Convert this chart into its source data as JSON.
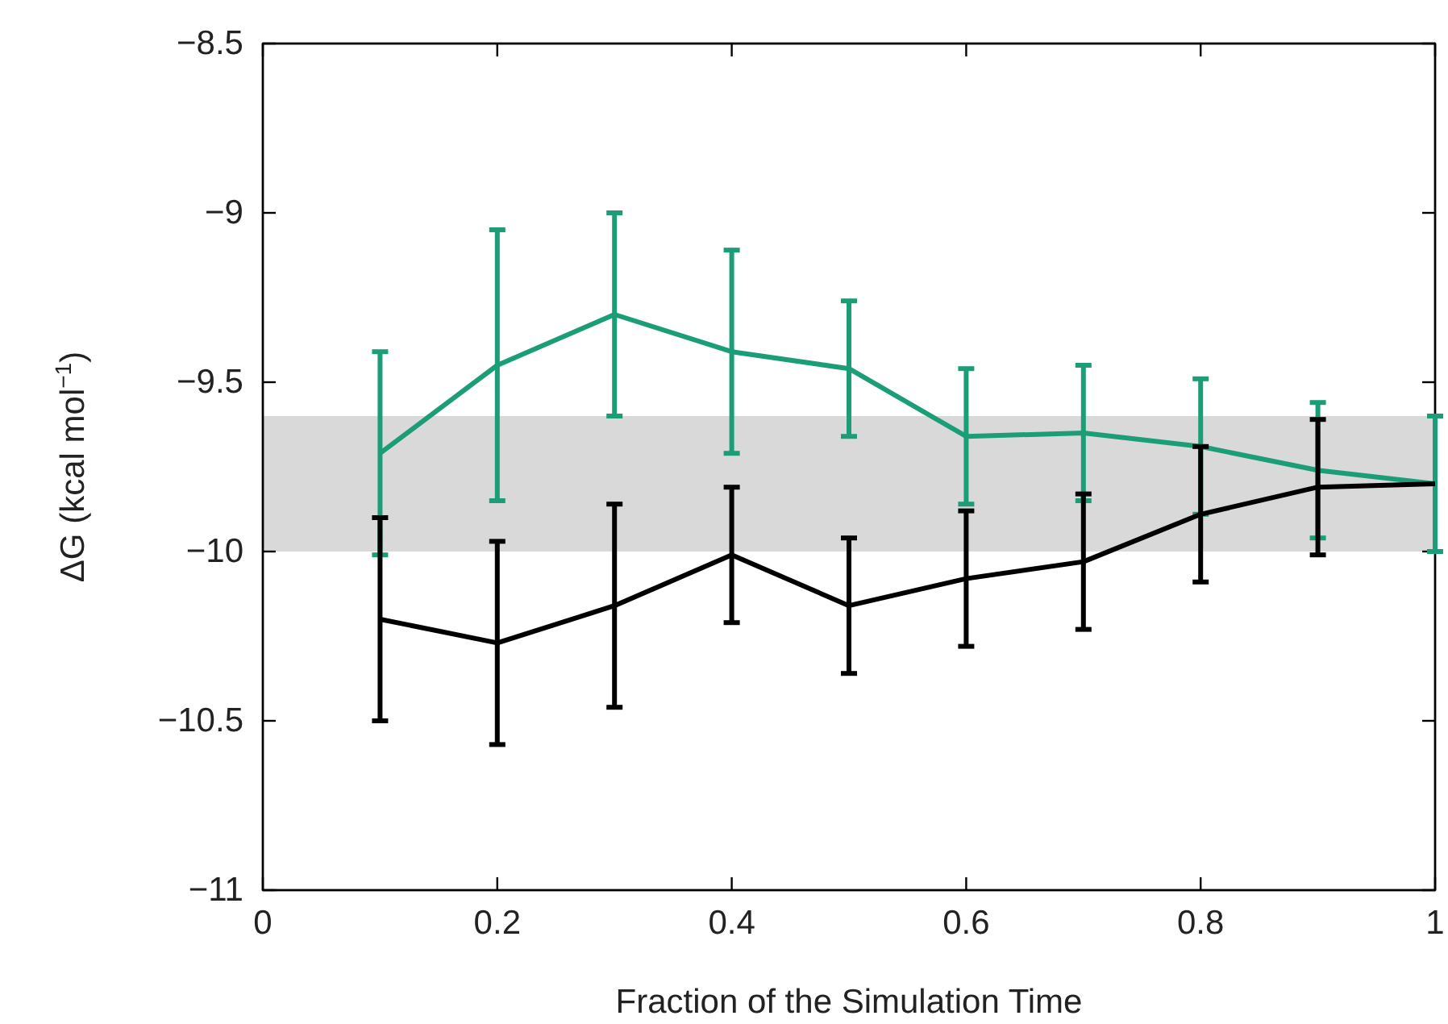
{
  "chart_data": {
    "type": "line",
    "xlabel": "Fraction of the Simulation Time",
    "ylabel": "ΔG (kcal mol$^{−1}$)",
    "x": [
      0.1,
      0.2,
      0.3,
      0.4,
      0.5,
      0.6,
      0.7,
      0.8,
      0.9,
      1
    ],
    "series": [
      {
        "color": "#1b9e77",
        "values": [
          -9.71,
          -9.45,
          -9.3,
          -9.41,
          -9.46,
          -9.66,
          -9.65,
          -9.69,
          -9.76,
          -9.8
        ],
        "errors": [
          0.3,
          0.4,
          0.3,
          0.3,
          0.2,
          0.2,
          0.2,
          0.2,
          0.2,
          0.2
        ]
      },
      {
        "color": "#000000",
        "values": [
          -10.2,
          -10.27,
          -10.16,
          -10.01,
          -10.16,
          -10.08,
          -10.03,
          -9.89,
          -9.81,
          -9.8
        ],
        "errors": [
          0.3,
          0.3,
          0.3,
          0.2,
          0.2,
          0.2,
          0.2,
          0.2,
          0.2,
          null
        ]
      }
    ],
    "bands": [
      {
        "axis": "y",
        "from": -10.0,
        "to": -9.6,
        "color": "#d9d9d9"
      }
    ],
    "xlim": [
      0,
      1
    ],
    "xticks": [
      0,
      0.2,
      0.4,
      0.6,
      0.8,
      1
    ],
    "ylim": [
      -11,
      -8.5
    ],
    "yticks": [
      {
        "value": -11,
        "label": "−11"
      },
      {
        "value": -10.5,
        "label": "−10.5"
      },
      {
        "value": -10,
        "label": "−10"
      },
      {
        "value": -9.5,
        "label": "−9.5"
      },
      {
        "value": -9,
        "label": "−9"
      },
      {
        "value": -8.5,
        "label": "−8.5"
      }
    ],
    "grid": false,
    "marker": "none",
    "line_style": "solid"
  }
}
